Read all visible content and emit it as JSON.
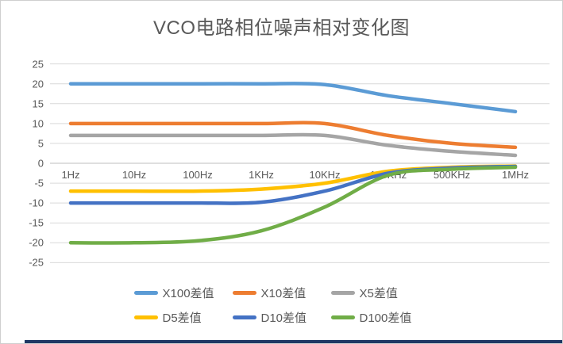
{
  "title": "VCO电路相位噪声相对变化图",
  "chart_data": {
    "type": "line",
    "smooth": true,
    "title": "VCO电路相位噪声相对变化图",
    "categories": [
      "1Hz",
      "10Hz",
      "100Hz",
      "1KHz",
      "10KHz",
      "100KHz",
      "500KHz",
      "1MHz"
    ],
    "series": [
      {
        "name": "X100差值",
        "color": "#5B9BD5",
        "values": [
          20,
          20,
          20,
          20,
          19.8,
          17,
          15,
          13
        ]
      },
      {
        "name": "X10差值",
        "color": "#ED7D31",
        "values": [
          10,
          10,
          10,
          10,
          10,
          7,
          5,
          4
        ]
      },
      {
        "name": "X5差值",
        "color": "#A5A5A5",
        "values": [
          7,
          7,
          7,
          7,
          7,
          4.5,
          3,
          2
        ]
      },
      {
        "name": "D5差值",
        "color": "#FFC000",
        "values": [
          -7,
          -7,
          -7,
          -6.5,
          -5,
          -2,
          -1,
          -0.7
        ]
      },
      {
        "name": "D10差值",
        "color": "#4472C4",
        "values": [
          -10,
          -10,
          -10,
          -9.8,
          -7,
          -2.5,
          -1.2,
          -0.8
        ]
      },
      {
        "name": "D100差值",
        "color": "#70AD47",
        "values": [
          -20,
          -20,
          -19.5,
          -17,
          -11,
          -3,
          -1.5,
          -1
        ]
      }
    ],
    "ylim": [
      -25,
      25
    ],
    "ytick_step": 5,
    "y_tick_labels": [
      "25",
      "20",
      "15",
      "10",
      "5",
      "0",
      "-5",
      "-10",
      "-15",
      "-20",
      "-25"
    ],
    "grid": true,
    "legend_position": "bottom",
    "gridline_color": "#D9D9D9",
    "axis_label_color": "#595959"
  },
  "bottom_bar_color": "#1f3864"
}
